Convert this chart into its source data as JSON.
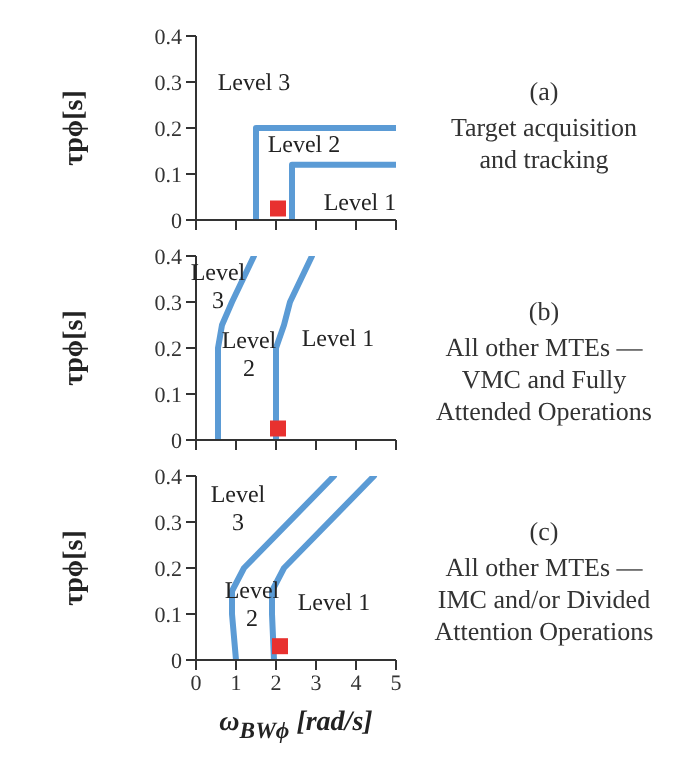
{
  "chart_data": [
    {
      "type": "line",
      "ylabel": "τpϕ[s]",
      "xlim": [
        0,
        5
      ],
      "xticks": [
        0,
        1,
        2,
        3,
        4,
        5
      ],
      "ylim": [
        0,
        0.4
      ],
      "yticks": [
        0,
        0.1,
        0.2,
        0.3,
        0.4
      ],
      "tick_labels": "y",
      "series": [
        {
          "color": "#5b9bd5",
          "x": [
            1.5,
            1.5,
            5
          ],
          "values": [
            0,
            0.2,
            0.2
          ]
        },
        {
          "color": "#5b9bd5",
          "x": [
            2.4,
            2.4,
            5
          ],
          "values": [
            0,
            0.12,
            0.12
          ]
        },
        {
          "type": "scatter",
          "color": "#e8312f",
          "marker": "square",
          "x": [
            2.05
          ],
          "values": [
            0.025
          ]
        }
      ],
      "annotations": [
        "Level 3",
        "Level 2",
        "Level 1",
        "(a)",
        "Target acquisition\nand tracking"
      ]
    },
    {
      "type": "line",
      "ylabel": "τpϕ[s]",
      "xlim": [
        0,
        5
      ],
      "xticks": [
        0,
        1,
        2,
        3,
        4,
        5
      ],
      "ylim": [
        0,
        0.4
      ],
      "yticks": [
        0,
        0.1,
        0.2,
        0.3,
        0.4
      ],
      "tick_labels": "y",
      "series": [
        {
          "color": "#5b9bd5",
          "x": [
            0.55,
            0.55,
            0.65,
            0.9,
            1.45
          ],
          "values": [
            0,
            0.2,
            0.25,
            0.3,
            0.4
          ]
        },
        {
          "color": "#5b9bd5",
          "x": [
            2.0,
            2.0,
            2.2,
            2.35,
            2.9
          ],
          "values": [
            0,
            0.2,
            0.25,
            0.3,
            0.4
          ]
        },
        {
          "type": "scatter",
          "color": "#e8312f",
          "marker": "square",
          "x": [
            2.05
          ],
          "values": [
            0.025
          ]
        }
      ],
      "annotations": [
        "Level\n3",
        "Level\n2",
        "Level 1",
        "(b)",
        "All other MTEs —\nVMC and Fully\nAttended Operations"
      ]
    },
    {
      "type": "line",
      "xlabel": "ω$_{BWϕ}$ [rad/s]",
      "ylabel": "τpϕ[s]",
      "xlim": [
        0,
        5
      ],
      "xticks": [
        0,
        1,
        2,
        3,
        4,
        5
      ],
      "ylim": [
        0,
        0.4
      ],
      "yticks": [
        0,
        0.1,
        0.2,
        0.3,
        0.4
      ],
      "series": [
        {
          "color": "#5b9bd5",
          "x": [
            1.0,
            0.9,
            0.9,
            1.2,
            3.45
          ],
          "values": [
            0,
            0.1,
            0.15,
            0.2,
            0.4
          ]
        },
        {
          "color": "#5b9bd5",
          "x": [
            1.95,
            1.9,
            1.9,
            2.2,
            4.45
          ],
          "values": [
            0,
            0.1,
            0.15,
            0.2,
            0.4
          ]
        },
        {
          "type": "scatter",
          "color": "#e8312f",
          "marker": "square",
          "x": [
            2.1
          ],
          "values": [
            0.03
          ]
        }
      ],
      "annotations": [
        "Level\n3",
        "Level\n2",
        "Level 1",
        "(c)",
        "All other MTEs —\nIMC and/or Divided\nAttention Operations"
      ]
    }
  ]
}
